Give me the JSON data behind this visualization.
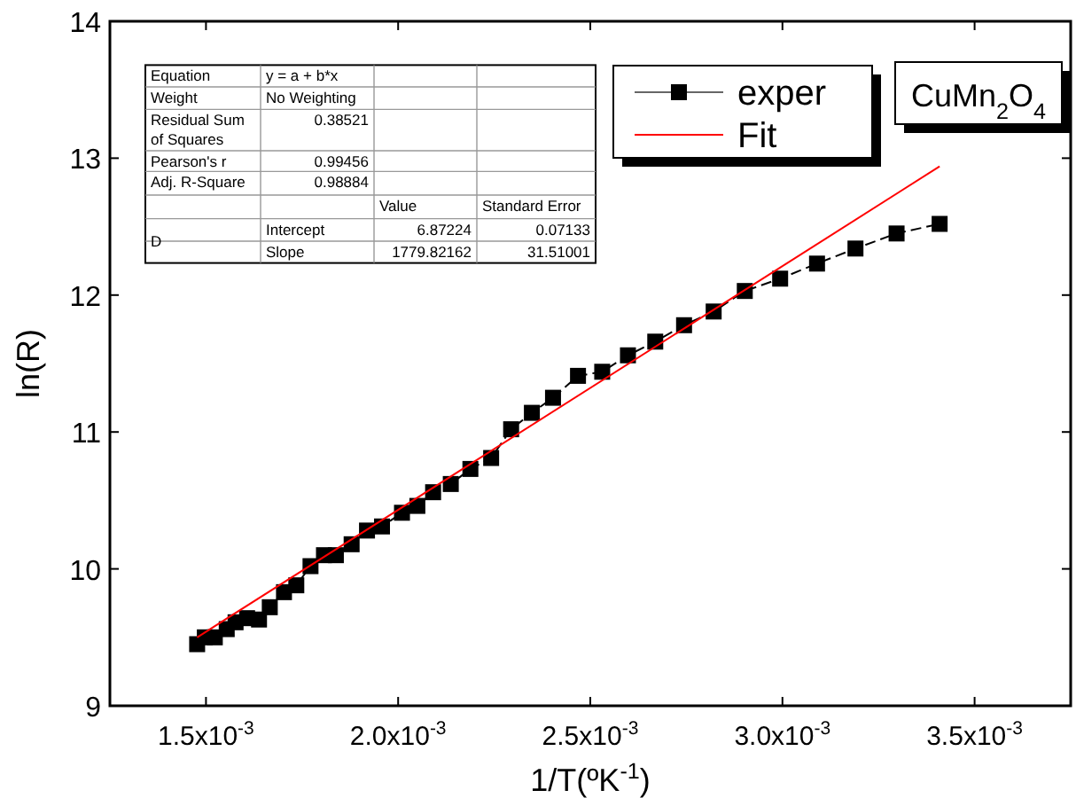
{
  "chart_data": {
    "type": "line",
    "xlabel": "1/T(ºK$^{-1}$)",
    "ylabel": "ln(R)",
    "xlim": [
      0.00125,
      0.00375
    ],
    "ylim": [
      9,
      14
    ],
    "xticks": [
      {
        "value": 0.0015,
        "label": "1.5x10$^{-3}$"
      },
      {
        "value": 0.002,
        "label": "2.0x10$^{-3}$"
      },
      {
        "value": 0.0025,
        "label": "2.5x10$^{-3}$"
      },
      {
        "value": 0.003,
        "label": "3.0x10$^{-3}$"
      },
      {
        "value": 0.0035,
        "label": "3.5x10$^{-3}$"
      }
    ],
    "yticks": [
      9,
      10,
      11,
      12,
      13,
      14
    ],
    "grid": false,
    "legend": "top right",
    "series": [
      {
        "name": "exper",
        "color": "#000000",
        "marker": "square",
        "line_style": "dashed",
        "x": [
          0.001477,
          0.001497,
          0.001523,
          0.001554,
          0.001577,
          0.001607,
          0.001638,
          0.001666,
          0.001703,
          0.001735,
          0.001772,
          0.001807,
          0.001838,
          0.001879,
          0.001919,
          0.001958,
          0.00201,
          0.00205,
          0.002091,
          0.002137,
          0.002188,
          0.002242,
          0.002294,
          0.002348,
          0.002403,
          0.002468,
          0.002531,
          0.002598,
          0.002669,
          0.002744,
          0.002821,
          0.002902,
          0.002994,
          0.00309,
          0.00319,
          0.003297,
          0.003409
        ],
        "values": [
          9.45,
          9.5,
          9.5,
          9.56,
          9.61,
          9.64,
          9.63,
          9.72,
          9.83,
          9.88,
          10.02,
          10.1,
          10.1,
          10.18,
          10.28,
          10.31,
          10.41,
          10.46,
          10.56,
          10.62,
          10.73,
          10.81,
          11.02,
          11.14,
          11.25,
          11.41,
          11.44,
          11.56,
          11.66,
          11.78,
          11.88,
          12.03,
          12.12,
          12.23,
          12.34,
          12.45,
          12.52
        ]
      },
      {
        "name": "Fit",
        "color": "#ff0000",
        "marker": "none",
        "line_style": "solid",
        "x": [
          0.001477,
          0.003409
        ],
        "values": [
          9.5,
          12.94
        ]
      }
    ],
    "annotations": [
      "Equation",
      "y = a + b*x",
      "Weight",
      "No Weighting",
      "Residual Sum of Squares",
      "0.38521",
      "Pearson's r",
      "0.99456",
      "Adj. R-Square",
      "0.98884",
      "Value",
      "Standard Error",
      "D",
      "Intercept",
      "6.87224",
      "0.07133",
      "Slope",
      "1779.82162",
      "31.51001",
      "CuMn$_{2}$O$_{4}$"
    ]
  }
}
